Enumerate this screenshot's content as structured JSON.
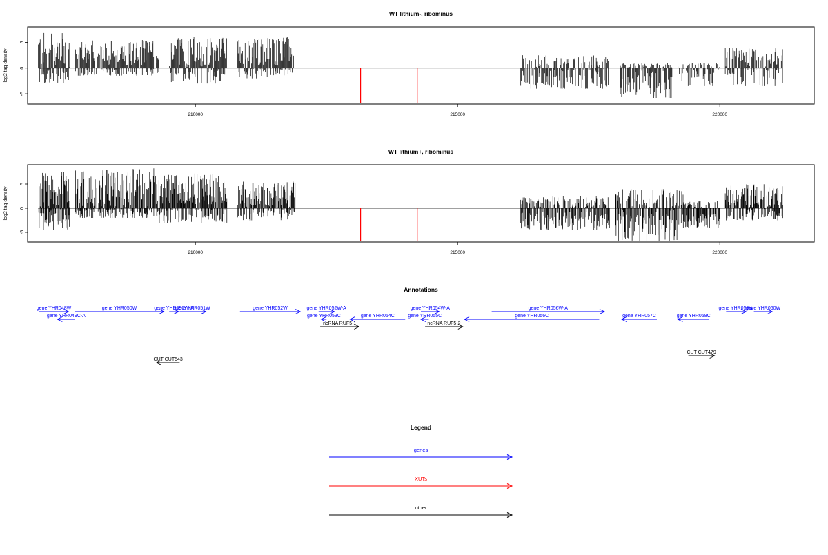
{
  "chart_data": [
    {
      "type": "bar",
      "title": "WT lithium-, ribominus",
      "ylabel": "log2 tag density",
      "xlim": [
        206800,
        221800
      ],
      "ylim": [
        -7,
        8
      ],
      "x_ticks": [
        "210000",
        "215000",
        "220000"
      ],
      "x_tick_values": [
        210000,
        215000,
        220000
      ],
      "y_ticks": [
        "-5",
        "0",
        "5"
      ],
      "y_tick_values": [
        -5,
        0,
        5
      ],
      "xut_marks": [
        {
          "x": 213150,
          "value": -6.8
        },
        {
          "x": 214230,
          "value": -6.8
        }
      ],
      "signal_segments": [
        {
          "start": 207000,
          "end": 207600,
          "plus_mean": 3.5,
          "plus_max": 7.0,
          "minus_mean": 1.2,
          "minus_max": 3.2
        },
        {
          "start": 207700,
          "end": 209300,
          "plus_mean": 3.0,
          "plus_max": 5.5,
          "minus_mean": 0.3,
          "minus_max": 1.5
        },
        {
          "start": 209500,
          "end": 210600,
          "plus_mean": 3.2,
          "plus_max": 6.2,
          "minus_mean": 0.6,
          "minus_max": 3.0
        },
        {
          "start": 210800,
          "end": 211900,
          "plus_mean": 3.2,
          "plus_max": 6.0,
          "minus_mean": 0.3,
          "minus_max": 2.0
        },
        {
          "start": 216200,
          "end": 217900,
          "plus_mean": 0.2,
          "plus_max": 2.5,
          "minus_mean": 1.8,
          "minus_max": 4.0
        },
        {
          "start": 218100,
          "end": 219100,
          "plus_mean": 0.2,
          "plus_max": 1.0,
          "minus_mean": 3.0,
          "minus_max": 5.8
        },
        {
          "start": 219200,
          "end": 220000,
          "plus_mean": 0.2,
          "plus_max": 1.0,
          "minus_mean": 1.5,
          "minus_max": 3.5
        },
        {
          "start": 220100,
          "end": 221200,
          "plus_mean": 2.0,
          "plus_max": 4.0,
          "minus_mean": 0.8,
          "minus_max": 3.5
        }
      ]
    },
    {
      "type": "bar",
      "title": "WT lithium+, ribominus",
      "ylabel": "log2 tag density",
      "xlim": [
        206800,
        221800
      ],
      "ylim": [
        -7,
        9
      ],
      "x_ticks": [
        "210000",
        "215000",
        "220000"
      ],
      "x_tick_values": [
        210000,
        215000,
        220000
      ],
      "y_ticks": [
        "-5",
        "0",
        "5"
      ],
      "y_tick_values": [
        -5,
        0,
        5
      ],
      "xut_marks": [
        {
          "x": 213150,
          "value": -6.8
        },
        {
          "x": 214230,
          "value": -6.8
        }
      ],
      "signal_segments": [
        {
          "start": 207000,
          "end": 207600,
          "plus_mean": 3.8,
          "plus_max": 7.5,
          "minus_mean": 2.0,
          "minus_max": 4.5
        },
        {
          "start": 207700,
          "end": 209300,
          "plus_mean": 3.8,
          "plus_max": 8.3,
          "minus_mean": 0.5,
          "minus_max": 2.0
        },
        {
          "start": 209300,
          "end": 210600,
          "plus_mean": 4.0,
          "plus_max": 7.2,
          "minus_mean": 0.8,
          "minus_max": 3.0
        },
        {
          "start": 210800,
          "end": 211900,
          "plus_mean": 2.5,
          "plus_max": 5.5,
          "minus_mean": 0.5,
          "minus_max": 2.5
        },
        {
          "start": 216200,
          "end": 217900,
          "plus_mean": 0.5,
          "plus_max": 2.5,
          "minus_mean": 2.5,
          "minus_max": 4.5
        },
        {
          "start": 218000,
          "end": 219300,
          "plus_mean": 0.8,
          "plus_max": 4.0,
          "minus_mean": 3.2,
          "minus_max": 6.8
        },
        {
          "start": 219300,
          "end": 220000,
          "plus_mean": 0.3,
          "plus_max": 1.5,
          "minus_mean": 2.5,
          "minus_max": 4.0
        },
        {
          "start": 220100,
          "end": 221200,
          "plus_mean": 2.5,
          "plus_max": 5.0,
          "minus_mean": 0.6,
          "minus_max": 2.5
        }
      ]
    }
  ],
  "annotations": {
    "title": "Annotations",
    "features": [
      {
        "label": "gene YHR048W",
        "start": 207020,
        "end": 207580,
        "strand": "+",
        "color": "#0000ff",
        "row": 0
      },
      {
        "label": "gene YHR049C-A",
        "start": 207370,
        "end": 207700,
        "strand": "-",
        "color": "#0000ff",
        "row": 1
      },
      {
        "label": "gene YHR050W",
        "start": 207700,
        "end": 209400,
        "strand": "+",
        "color": "#0000ff",
        "row": 0
      },
      {
        "label": "gene YHR050W-A",
        "start": 209500,
        "end": 209680,
        "strand": "+",
        "color": "#0000ff",
        "row": 0
      },
      {
        "label": "gene YHR051W",
        "start": 209700,
        "end": 210200,
        "strand": "+",
        "color": "#0000ff",
        "row": 0
      },
      {
        "label": "gene YHR052W",
        "start": 210850,
        "end": 212000,
        "strand": "+",
        "color": "#0000ff",
        "row": 0
      },
      {
        "label": "gene YHR052W-A",
        "start": 212350,
        "end": 212650,
        "strand": "+",
        "color": "#0000ff",
        "row": 0
      },
      {
        "label": "gene YHR053C",
        "start": 212400,
        "end": 212500,
        "strand": "-",
        "color": "#0000ff",
        "row": 1
      },
      {
        "label": "gene YHR054C",
        "start": 212950,
        "end": 214000,
        "strand": "-",
        "color": "#0000ff",
        "row": 1
      },
      {
        "label": "gene YHR054W-A",
        "start": 214300,
        "end": 214650,
        "strand": "+",
        "color": "#0000ff",
        "row": 0
      },
      {
        "label": "gene YHR055C",
        "start": 214300,
        "end": 214450,
        "strand": "-",
        "color": "#0000ff",
        "row": 1
      },
      {
        "label": "gene YHR056C",
        "start": 215130,
        "end": 217700,
        "strand": "-",
        "color": "#0000ff",
        "row": 1
      },
      {
        "label": "gene YHR056W-A",
        "start": 215650,
        "end": 217800,
        "strand": "+",
        "color": "#0000ff",
        "row": 0
      },
      {
        "label": "gene YHR057C",
        "start": 218130,
        "end": 218800,
        "strand": "-",
        "color": "#0000ff",
        "row": 1
      },
      {
        "label": "gene YHR058C",
        "start": 219200,
        "end": 219800,
        "strand": "-",
        "color": "#0000ff",
        "row": 1
      },
      {
        "label": "gene YHR059W",
        "start": 220120,
        "end": 220500,
        "strand": "+",
        "color": "#0000ff",
        "row": 0
      },
      {
        "label": "gene YHR060W",
        "start": 220650,
        "end": 221000,
        "strand": "+",
        "color": "#0000ff",
        "row": 0
      },
      {
        "label": "ncRNA RUF5-1",
        "start": 212380,
        "end": 213120,
        "strand": "+",
        "color": "#000000",
        "row": 2
      },
      {
        "label": "ncRNA RUF5-2",
        "start": 214380,
        "end": 215100,
        "strand": "+",
        "color": "#000000",
        "row": 2
      },
      {
        "label": "CUT CUT543",
        "start": 209260,
        "end": 209700,
        "strand": "-",
        "color": "#000000",
        "row": 3
      },
      {
        "label": "CUT CUT479",
        "start": 219400,
        "end": 219900,
        "strand": "+",
        "color": "#000000",
        "row": 4
      }
    ]
  },
  "legend": {
    "title": "Legend",
    "items": [
      {
        "label": "genes",
        "color": "#0000ff"
      },
      {
        "label": "XUTs",
        "color": "#ff0000"
      },
      {
        "label": "other",
        "color": "#000000"
      }
    ]
  }
}
